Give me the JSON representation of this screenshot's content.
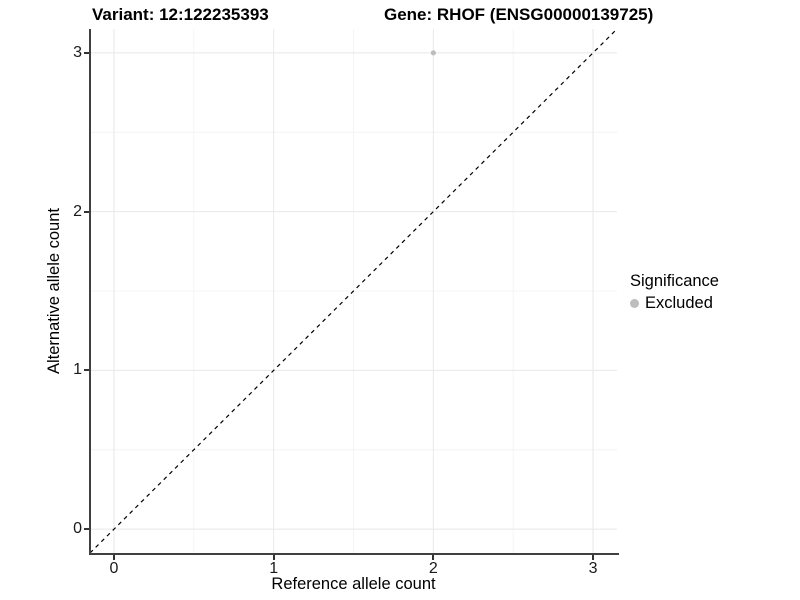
{
  "titles": {
    "left": "Variant: 12:122235393",
    "right": "Gene: RHOF (ENSG00000139725)"
  },
  "legend": {
    "title": "Significance",
    "items": [
      {
        "label": "Excluded",
        "color": "#bdbdbd"
      }
    ]
  },
  "colors": {
    "background": "#ffffff",
    "axis_line": "#404040",
    "tick_mark": "#333333",
    "tick_text": "#1a1a1a",
    "grid_major": "#e8e8e8",
    "grid_minor": "#f4f4f4",
    "reference_line": "#000000",
    "point": "#bdbdbd"
  },
  "chart_data": {
    "type": "scatter",
    "title": "Variant: 12:122235393 — Gene: RHOF (ENSG00000139725)",
    "xlabel": "Reference allele count",
    "ylabel": "Alternative allele count",
    "xlim": [
      -0.15,
      3.15
    ],
    "ylim": [
      -0.15,
      3.15
    ],
    "x_ticks": [
      0,
      1,
      2,
      3
    ],
    "y_ticks": [
      0,
      1,
      2,
      3
    ],
    "x_minor_ticks": [
      0.5,
      1.5,
      2.5
    ],
    "y_minor_ticks": [
      0.5,
      1.5,
      2.5
    ],
    "grid": true,
    "legend_position": "right",
    "series": [
      {
        "name": "Excluded",
        "color": "#bdbdbd",
        "points": [
          {
            "x": 2,
            "y": 3
          }
        ]
      }
    ],
    "reference_line": {
      "type": "identity",
      "slope": 1,
      "intercept": 0,
      "style": "dashed",
      "color": "#000000"
    }
  }
}
